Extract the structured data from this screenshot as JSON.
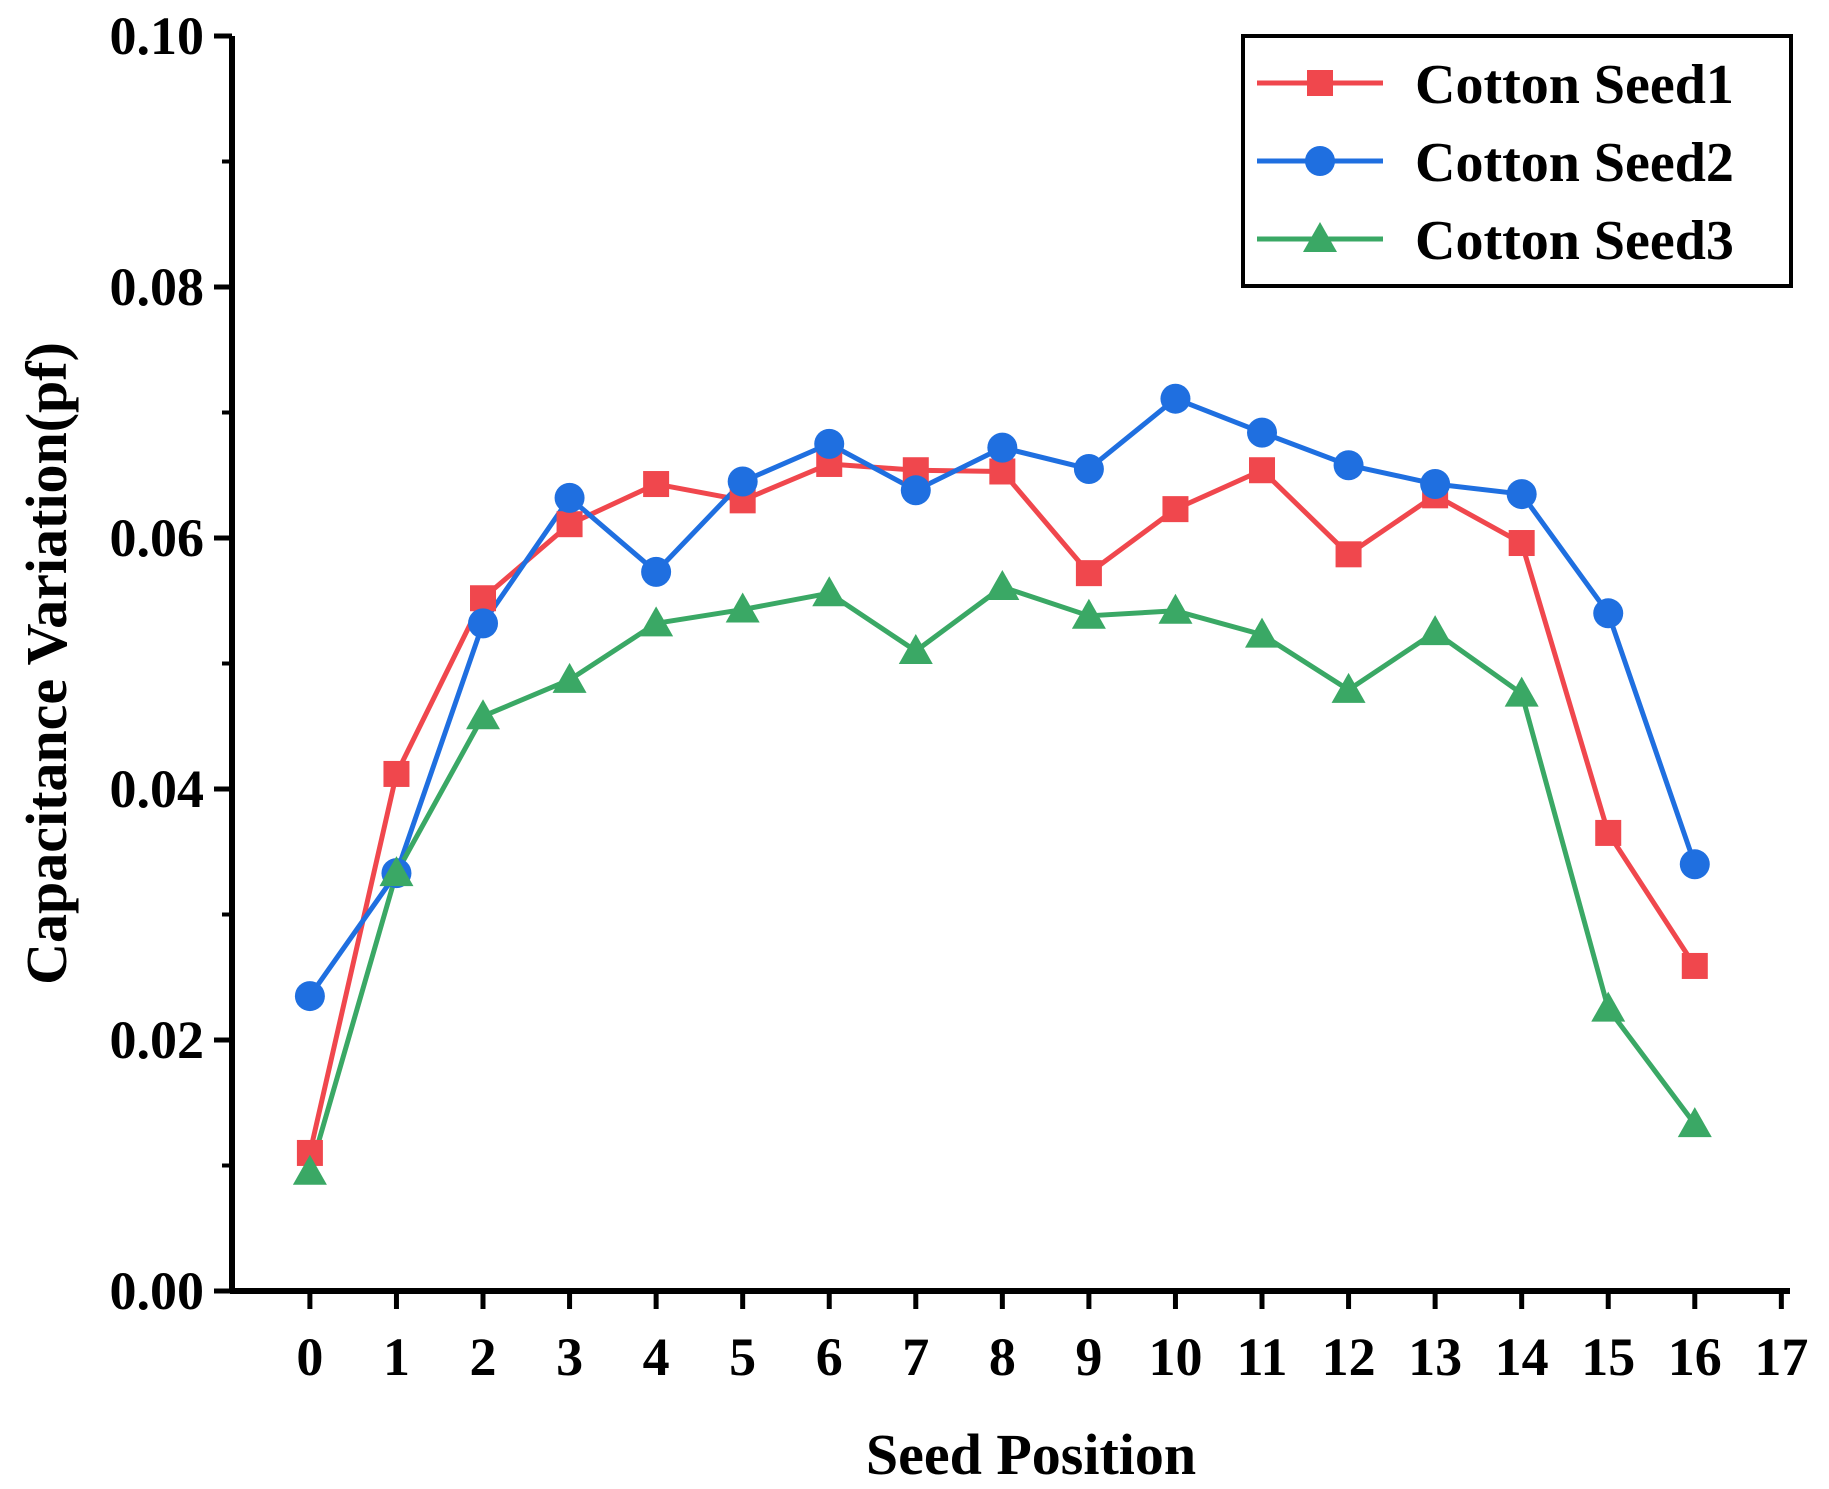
{
  "chart_data": {
    "type": "line",
    "title": "",
    "xlabel": "Seed Position",
    "ylabel": "Capacitance Variation(pf)",
    "xlim": [
      -0.9,
      17.1
    ],
    "ylim": [
      0.0,
      0.1
    ],
    "xticks": [
      "0",
      "1",
      "2",
      "3",
      "4",
      "5",
      "6",
      "7",
      "8",
      "9",
      "10",
      "11",
      "12",
      "13",
      "14",
      "15",
      "16",
      "17"
    ],
    "yticks": [
      "0.00",
      "0.02",
      "0.04",
      "0.06",
      "0.08",
      "0.10"
    ],
    "grid": false,
    "legend_position": "top-right",
    "x": [
      0,
      1,
      2,
      3,
      4,
      5,
      6,
      7,
      8,
      9,
      10,
      11,
      12,
      13,
      14,
      15,
      16
    ],
    "series": [
      {
        "name": "Cotton Seed1",
        "color": "#f0474d",
        "marker": "square",
        "values": [
          0.011,
          0.0412,
          0.0552,
          0.0611,
          0.0643,
          0.063,
          0.0659,
          0.0654,
          0.0653,
          0.0572,
          0.0623,
          0.0654,
          0.0587,
          0.0634,
          0.0596,
          0.0365,
          0.0259
        ]
      },
      {
        "name": "Cotton Seed2",
        "color": "#1f6fe0",
        "marker": "circle",
        "values": [
          0.0235,
          0.0333,
          0.0532,
          0.0632,
          0.0573,
          0.0645,
          0.0675,
          0.0638,
          0.0672,
          0.0655,
          0.0711,
          0.0684,
          0.0658,
          0.0643,
          0.0635,
          0.054,
          0.034
        ]
      },
      {
        "name": "Cotton Seed3",
        "color": "#3aa865",
        "marker": "triangle",
        "values": [
          0.0095,
          0.0333,
          0.0458,
          0.0487,
          0.0532,
          0.0543,
          0.0556,
          0.051,
          0.0561,
          0.0538,
          0.0542,
          0.0523,
          0.0479,
          0.0525,
          0.0476,
          0.0225,
          0.0133
        ]
      }
    ]
  }
}
